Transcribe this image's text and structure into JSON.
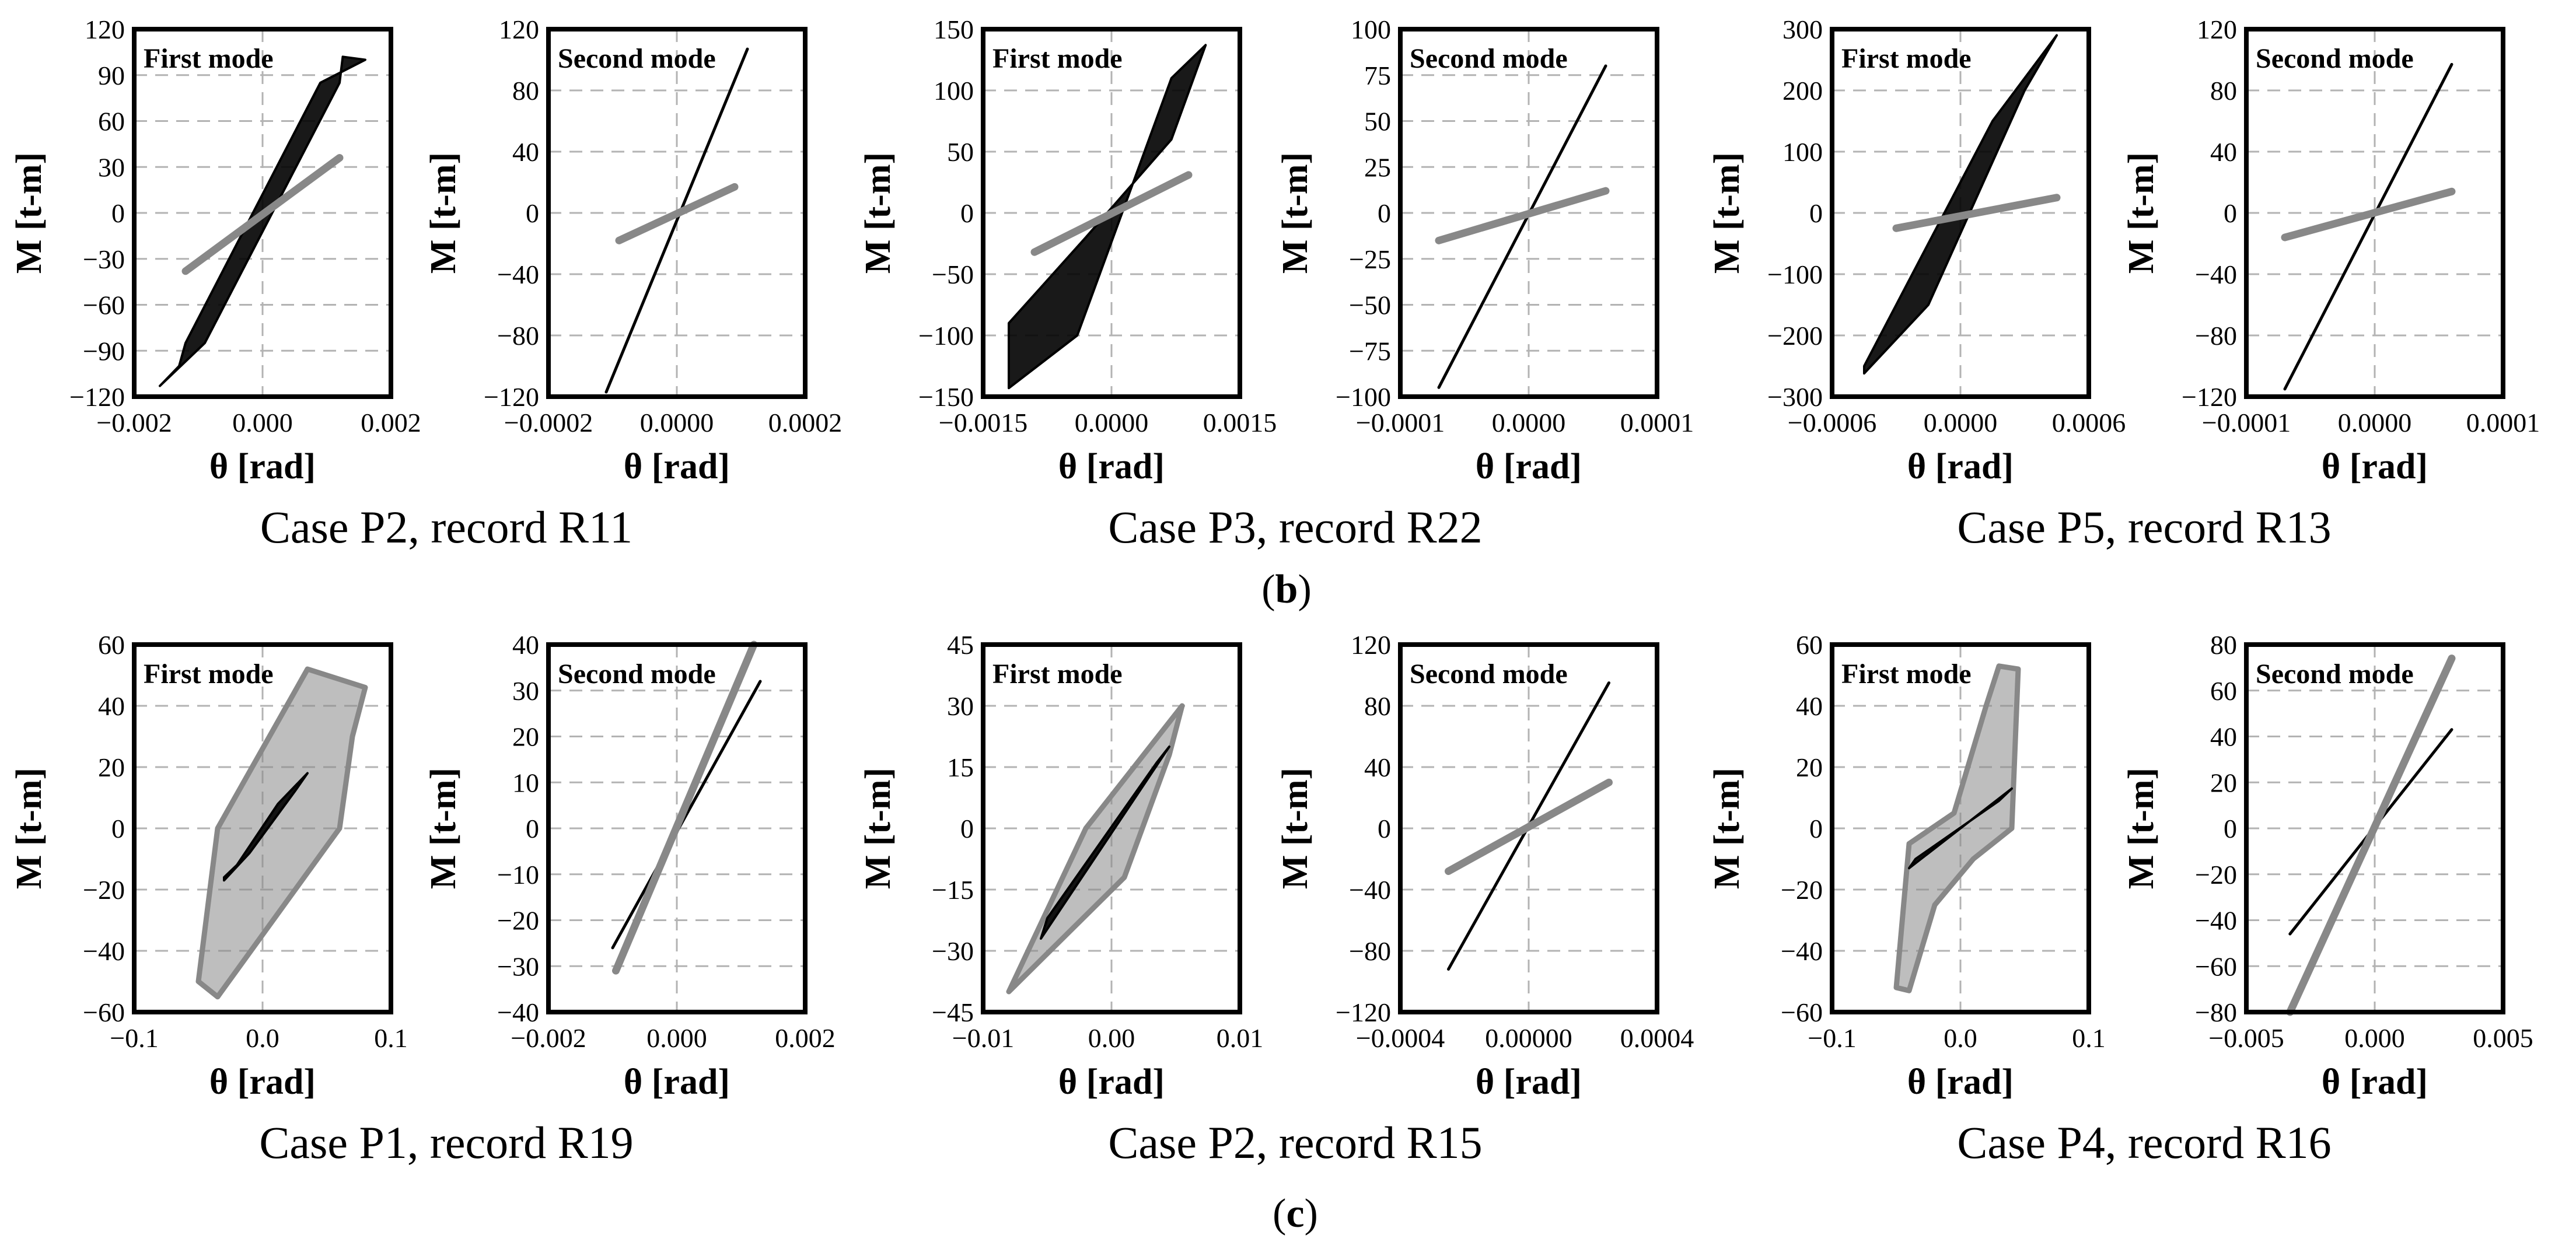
{
  "colors": {
    "black": "#000000",
    "gray": "#888888",
    "grid": "#b3b3b3"
  },
  "rows": [
    {
      "panel_label": "b",
      "captions": [
        "Case P2, record R11",
        "Case P3, record R22",
        "Case P5, record R13"
      ]
    },
    {
      "panel_label": "c",
      "captions": [
        "Case P1, record R19",
        "Case P2, record R15",
        "Case P4, record R16"
      ]
    }
  ],
  "chart_data": [
    {
      "id": "b-P2-first",
      "type": "line",
      "mode": "First mode",
      "xlabel": "θ [rad]",
      "ylabel": "M [t-m]",
      "xlim": [
        -0.002,
        0.002
      ],
      "ylim": [
        -120,
        120
      ],
      "xticks": [
        -0.002,
        0.0,
        0.002
      ],
      "xtick_labels": [
        "−0.002",
        "0.000",
        "0.002"
      ],
      "yticks": [
        -120,
        -90,
        -60,
        -30,
        0,
        30,
        60,
        90,
        120
      ],
      "ytick_labels": [
        "−120",
        "−90",
        "−60",
        "−30",
        "0",
        "30",
        "60",
        "90",
        "120"
      ],
      "series": [
        {
          "name": "hysteresis",
          "color": "black",
          "kind": "loop",
          "x": [
            -0.0016,
            -0.0009,
            0.0012,
            0.00125,
            0.0016,
            0.0009,
            -0.0012,
            -0.0013
          ],
          "y": [
            -113,
            -85,
            85,
            102,
            100,
            85,
            -85,
            -100
          ]
        },
        {
          "name": "second series",
          "color": "gray",
          "kind": "line",
          "x": [
            -0.0012,
            0.0012
          ],
          "y": [
            -38,
            36
          ]
        }
      ]
    },
    {
      "id": "b-P2-second",
      "type": "line",
      "mode": "Second mode",
      "xlabel": "θ [rad]",
      "ylabel": "M [t-m]",
      "xlim": [
        -0.0002,
        0.0002
      ],
      "ylim": [
        -120,
        120
      ],
      "xticks": [
        -0.0002,
        0.0,
        0.0002
      ],
      "xtick_labels": [
        "−0.0002",
        "0.0000",
        "0.0002"
      ],
      "yticks": [
        -120,
        -80,
        -40,
        0,
        40,
        80,
        120
      ],
      "ytick_labels": [
        "−120",
        "−80",
        "−40",
        "0",
        "40",
        "80",
        "120"
      ],
      "series": [
        {
          "name": "black line",
          "color": "black",
          "kind": "line",
          "x": [
            -0.00011,
            0.00011
          ],
          "y": [
            -117,
            107
          ]
        },
        {
          "name": "gray line",
          "color": "gray",
          "kind": "line",
          "x": [
            -9e-05,
            9e-05
          ],
          "y": [
            -18,
            17
          ]
        }
      ]
    },
    {
      "id": "b-P3-first",
      "type": "line",
      "mode": "First mode",
      "xlabel": "θ [rad]",
      "ylabel": "M [t-m]",
      "xlim": [
        -0.0015,
        0.0015
      ],
      "ylim": [
        -150,
        150
      ],
      "xticks": [
        -0.0015,
        0.0,
        0.0015
      ],
      "xtick_labels": [
        "−0.0015",
        "0.0000",
        "0.0015"
      ],
      "yticks": [
        -150,
        -100,
        -50,
        0,
        50,
        100,
        150
      ],
      "ytick_labels": [
        "−150",
        "−100",
        "−50",
        "0",
        "50",
        "100",
        "150"
      ],
      "series": [
        {
          "name": "hysteresis",
          "color": "black",
          "kind": "loop",
          "x": [
            -0.0012,
            -0.0004,
            0.0007,
            0.0011,
            0.0007,
            -0.0003,
            -0.0012
          ],
          "y": [
            -143,
            -100,
            110,
            137,
            60,
            -20,
            -90
          ]
        },
        {
          "name": "second series",
          "color": "gray",
          "kind": "line",
          "x": [
            -0.0009,
            0.0009
          ],
          "y": [
            -32,
            31
          ]
        }
      ]
    },
    {
      "id": "b-P3-second",
      "type": "line",
      "mode": "Second mode",
      "xlabel": "θ [rad]",
      "ylabel": "M [t-m]",
      "xlim": [
        -0.0001,
        0.0001
      ],
      "ylim": [
        -100,
        100
      ],
      "xticks": [
        -0.0001,
        0.0,
        0.0001
      ],
      "xtick_labels": [
        "−0.0001",
        "0.0000",
        "0.0001"
      ],
      "yticks": [
        -100,
        -75,
        -50,
        -25,
        0,
        25,
        50,
        75,
        100
      ],
      "ytick_labels": [
        "−100",
        "−75",
        "−50",
        "−25",
        "0",
        "25",
        "50",
        "75",
        "100"
      ],
      "series": [
        {
          "name": "black line",
          "color": "black",
          "kind": "line",
          "x": [
            -7e-05,
            6e-05
          ],
          "y": [
            -95,
            80
          ]
        },
        {
          "name": "gray line",
          "color": "gray",
          "kind": "line",
          "x": [
            -7e-05,
            6e-05
          ],
          "y": [
            -15,
            12
          ]
        }
      ]
    },
    {
      "id": "b-P5-first",
      "type": "line",
      "mode": "First mode",
      "xlabel": "θ [rad]",
      "ylabel": "M [t-m]",
      "xlim": [
        -0.0006,
        0.0006
      ],
      "ylim": [
        -300,
        300
      ],
      "xticks": [
        -0.0006,
        0.0,
        0.0006
      ],
      "xtick_labels": [
        "−0.0006",
        "0.0000",
        "0.0006"
      ],
      "yticks": [
        -300,
        -200,
        -100,
        0,
        100,
        200,
        300
      ],
      "ytick_labels": [
        "−300",
        "−200",
        "−100",
        "0",
        "100",
        "200",
        "300"
      ],
      "series": [
        {
          "name": "hysteresis",
          "color": "black",
          "kind": "loop",
          "x": [
            -0.00045,
            -0.00015,
            0.0003,
            0.00045,
            0.00015,
            -0.0003,
            -0.00045
          ],
          "y": [
            -262,
            -150,
            200,
            290,
            150,
            -150,
            -250
          ]
        },
        {
          "name": "second series",
          "color": "gray",
          "kind": "line",
          "x": [
            -0.0003,
            0.00045
          ],
          "y": [
            -25,
            25
          ]
        }
      ]
    },
    {
      "id": "b-P5-second",
      "type": "line",
      "mode": "Second mode",
      "xlabel": "θ [rad]",
      "ylabel": "M [t-m]",
      "xlim": [
        -0.0001,
        0.0001
      ],
      "ylim": [
        -120,
        120
      ],
      "xticks": [
        -0.0001,
        0.0,
        0.0001
      ],
      "xtick_labels": [
        "−0.0001",
        "0.0000",
        "0.0001"
      ],
      "yticks": [
        -120,
        -80,
        -40,
        0,
        40,
        80,
        120
      ],
      "ytick_labels": [
        "−120",
        "−80",
        "−40",
        "0",
        "40",
        "80",
        "120"
      ],
      "series": [
        {
          "name": "black line",
          "color": "black",
          "kind": "line",
          "x": [
            -7e-05,
            6e-05
          ],
          "y": [
            -115,
            97
          ]
        },
        {
          "name": "gray line",
          "color": "gray",
          "kind": "line",
          "x": [
            -7e-05,
            6e-05
          ],
          "y": [
            -16,
            14
          ]
        }
      ]
    },
    {
      "id": "c-P1-first",
      "type": "line",
      "mode": "First mode",
      "xlabel": "θ [rad]",
      "ylabel": "M [t-m]",
      "xlim": [
        -0.1,
        0.1
      ],
      "ylim": [
        -60,
        60
      ],
      "xticks": [
        -0.1,
        0.0,
        0.1
      ],
      "xtick_labels": [
        "−0.1",
        "0.0",
        "0.1"
      ],
      "yticks": [
        -60,
        -40,
        -20,
        0,
        20,
        40,
        60
      ],
      "ytick_labels": [
        "−60",
        "−40",
        "−20",
        "0",
        "20",
        "40",
        "60"
      ],
      "series": [
        {
          "name": "gray envelope",
          "color": "gray",
          "kind": "loop",
          "x": [
            -0.05,
            -0.035,
            0.035,
            0.08,
            0.07,
            0.06,
            -0.035,
            -0.05
          ],
          "y": [
            -50,
            0,
            52,
            46,
            30,
            0,
            -55,
            -50
          ]
        },
        {
          "name": "black hysteresis",
          "color": "black",
          "kind": "loop",
          "x": [
            -0.03,
            -0.01,
            0.025,
            0.035,
            0.012,
            -0.02,
            -0.03
          ],
          "y": [
            -17,
            -8,
            12,
            18,
            8,
            -12,
            -16
          ]
        }
      ]
    },
    {
      "id": "c-P1-second",
      "type": "line",
      "mode": "Second mode",
      "xlabel": "θ [rad]",
      "ylabel": "M [t-m]",
      "xlim": [
        -0.002,
        0.002
      ],
      "ylim": [
        -40,
        40
      ],
      "xticks": [
        -0.002,
        0.0,
        0.002
      ],
      "xtick_labels": [
        "−0.002",
        "0.000",
        "0.002"
      ],
      "yticks": [
        -40,
        -30,
        -20,
        -10,
        0,
        10,
        20,
        30,
        40
      ],
      "ytick_labels": [
        "−40",
        "−30",
        "−20",
        "−10",
        "0",
        "10",
        "20",
        "30",
        "40"
      ],
      "series": [
        {
          "name": "black line",
          "color": "black",
          "kind": "line",
          "x": [
            -0.001,
            0.0013
          ],
          "y": [
            -26,
            32
          ]
        },
        {
          "name": "gray line",
          "color": "gray",
          "kind": "line",
          "x": [
            -0.00095,
            0.0012
          ],
          "y": [
            -31,
            40
          ]
        }
      ]
    },
    {
      "id": "c-P2-first",
      "type": "line",
      "mode": "First mode",
      "xlabel": "θ [rad]",
      "ylabel": "M [t-m]",
      "xlim": [
        -0.01,
        0.01
      ],
      "ylim": [
        -45,
        45
      ],
      "xticks": [
        -0.01,
        0.0,
        0.01
      ],
      "xtick_labels": [
        "−0.01",
        "0.00",
        "0.01"
      ],
      "yticks": [
        -45,
        -30,
        -15,
        0,
        15,
        30,
        45
      ],
      "ytick_labels": [
        "−45",
        "−30",
        "−15",
        "0",
        "15",
        "30",
        "45"
      ],
      "series": [
        {
          "name": "gray envelope",
          "color": "gray",
          "kind": "loop",
          "x": [
            -0.008,
            -0.002,
            0.0055,
            0.0045,
            0.001,
            -0.008
          ],
          "y": [
            -40,
            0,
            30,
            18,
            -12,
            -40
          ]
        },
        {
          "name": "black hysteresis",
          "color": "black",
          "kind": "loop",
          "x": [
            -0.0055,
            0.0045,
            0.0035,
            -0.005,
            -0.0055
          ],
          "y": [
            -27,
            20,
            16,
            -22,
            -27
          ]
        }
      ]
    },
    {
      "id": "c-P2-second",
      "type": "line",
      "mode": "Second mode",
      "xlabel": "θ [rad]",
      "ylabel": "M [t-m]",
      "xlim": [
        -0.0004,
        0.0004
      ],
      "ylim": [
        -120,
        120
      ],
      "xticks": [
        -0.0004,
        0.0,
        0.0004
      ],
      "xtick_labels": [
        "−0.0004",
        "0.00000",
        "0.0004"
      ],
      "yticks": [
        -120,
        -80,
        -40,
        0,
        40,
        80,
        120
      ],
      "ytick_labels": [
        "−120",
        "−80",
        "−40",
        "0",
        "40",
        "80",
        "120"
      ],
      "series": [
        {
          "name": "black line",
          "color": "black",
          "kind": "line",
          "x": [
            -0.00025,
            0.00025
          ],
          "y": [
            -92,
            95
          ]
        },
        {
          "name": "gray line",
          "color": "gray",
          "kind": "line",
          "x": [
            -0.00025,
            0.00025
          ],
          "y": [
            -28,
            30
          ]
        }
      ]
    },
    {
      "id": "c-P4-first",
      "type": "line",
      "mode": "First mode",
      "xlabel": "θ [rad]",
      "ylabel": "M [t-m]",
      "xlim": [
        -0.1,
        0.1
      ],
      "ylim": [
        -60,
        60
      ],
      "xticks": [
        -0.1,
        0.0,
        0.1
      ],
      "xtick_labels": [
        "−0.1",
        "0.0",
        "0.1"
      ],
      "yticks": [
        -60,
        -40,
        -20,
        0,
        20,
        40,
        60
      ],
      "ytick_labels": [
        "−60",
        "−40",
        "−20",
        "0",
        "20",
        "40",
        "60"
      ],
      "series": [
        {
          "name": "gray envelope",
          "color": "gray",
          "kind": "loop",
          "x": [
            -0.05,
            -0.04,
            -0.005,
            0.02,
            0.03,
            0.045,
            0.04,
            0.01,
            -0.02,
            -0.04,
            -0.05
          ],
          "y": [
            -52,
            -5,
            5,
            40,
            53,
            52,
            0,
            -10,
            -25,
            -53,
            -52
          ]
        },
        {
          "name": "black hysteresis",
          "color": "black",
          "kind": "loop",
          "x": [
            -0.04,
            0.04,
            0.03,
            -0.035,
            -0.04
          ],
          "y": [
            -13,
            13,
            9,
            -10,
            -13
          ]
        }
      ]
    },
    {
      "id": "c-P4-second",
      "type": "line",
      "mode": "Second mode",
      "xlabel": "θ [rad]",
      "ylabel": "M [t-m]",
      "xlim": [
        -0.005,
        0.005
      ],
      "ylim": [
        -80,
        80
      ],
      "xticks": [
        -0.005,
        0.0,
        0.005
      ],
      "xtick_labels": [
        "−0.005",
        "0.000",
        "0.005"
      ],
      "yticks": [
        -80,
        -60,
        -40,
        -20,
        0,
        20,
        40,
        60,
        80
      ],
      "ytick_labels": [
        "−80",
        "−60",
        "−40",
        "−20",
        "0",
        "20",
        "40",
        "60",
        "80"
      ],
      "series": [
        {
          "name": "black line",
          "color": "black",
          "kind": "line",
          "x": [
            -0.0033,
            0.003
          ],
          "y": [
            -46,
            43
          ]
        },
        {
          "name": "gray line",
          "color": "gray",
          "kind": "line",
          "x": [
            -0.0033,
            0.003
          ],
          "y": [
            -80,
            74
          ]
        }
      ]
    }
  ]
}
